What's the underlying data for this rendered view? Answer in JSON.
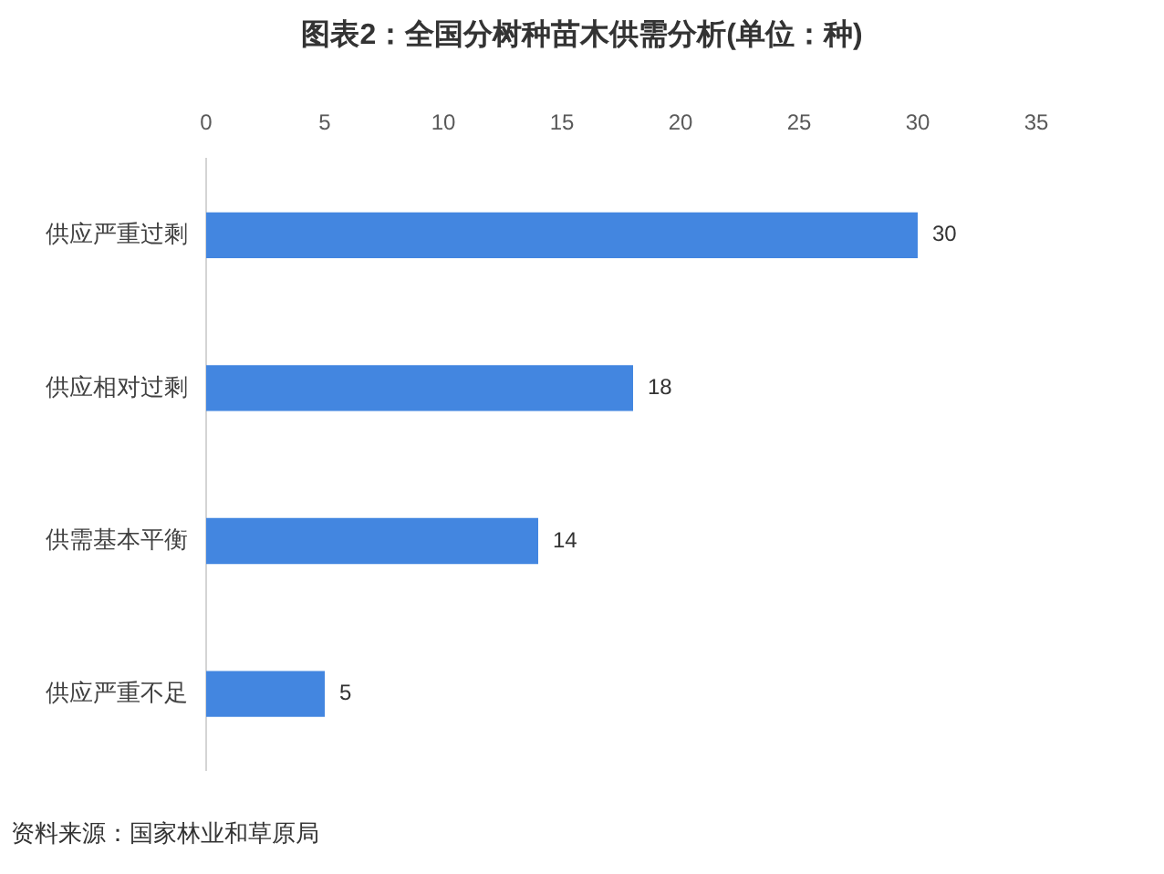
{
  "chart_data": {
    "type": "bar",
    "orientation": "horizontal",
    "title": "图表2：全国分树种苗木供需分析(单位：种)",
    "categories": [
      "供应严重过剩",
      "供应相对过剩",
      "供需基本平衡",
      "供应严重不足"
    ],
    "values": [
      30,
      18,
      14,
      5
    ],
    "color": "#4386e0",
    "xlim": [
      0,
      35
    ],
    "xticks": [
      0,
      5,
      10,
      15,
      20,
      25,
      30,
      35
    ],
    "data_labels": true,
    "annotations": [
      "资料来源：国家林业和草原局"
    ]
  }
}
